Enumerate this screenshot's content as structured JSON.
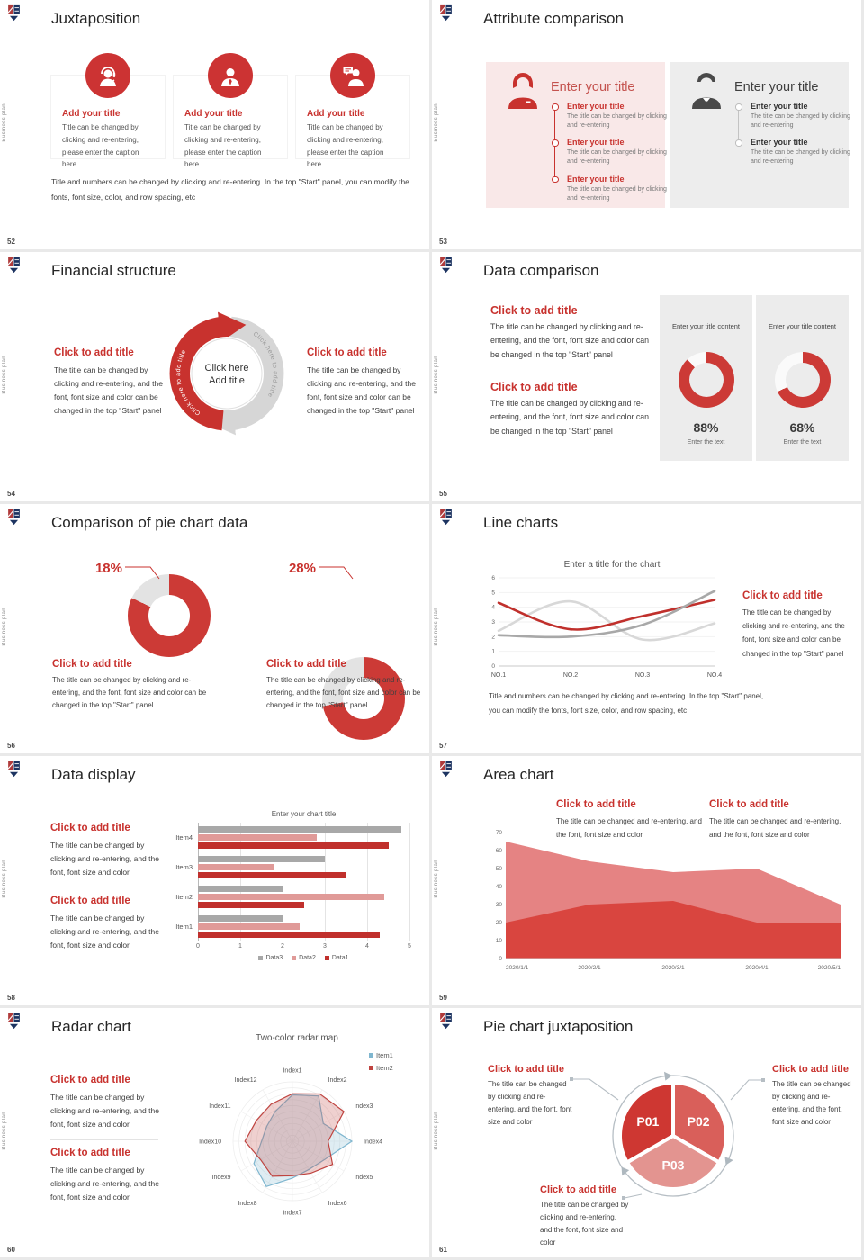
{
  "page": {
    "background": "#e2e2e2",
    "slide_background": "#ffffff"
  },
  "brand": {
    "vertical_text": "Business plan",
    "logo": "school-crest-logo-icon"
  },
  "colors": {
    "accent": "#c8322e",
    "accent_soft": "#c4524e",
    "chart_red": "#c0302c",
    "chart_pink": "#e09a98",
    "chart_gray": "#a8a8a8",
    "chart_light_gray": "#d8d8d8",
    "panel_pink": "#f9e8e8",
    "panel_gray": "#ededed",
    "area_light": "#e58383",
    "area_dark": "#d9453f",
    "radar_blue": "#7fb6cf",
    "radar_red": "#bf4440",
    "pie_colors": [
      "#ce3732",
      "#d95f5a",
      "#e39490"
    ]
  },
  "slides": {
    "s52": {
      "number": "52",
      "title": "Juxtaposition",
      "cards": [
        {
          "icon": "support-agent-icon",
          "title": "Add your title",
          "caption": "Title can be changed by clicking and re-entering, please enter the caption here"
        },
        {
          "icon": "businessman-icon",
          "title": "Add your title",
          "caption": "Title can be changed by clicking and re-entering, please enter the caption here"
        },
        {
          "icon": "consultant-chat-icon",
          "title": "Add your title",
          "caption": "Title can be changed by clicking and re-entering, please enter the caption here"
        }
      ],
      "note": "Title and numbers can be changed by clicking and re-entering. In the top \"Start\" panel, you can modify the fonts, font size, color, and row spacing, etc"
    },
    "s53": {
      "number": "53",
      "title": "Attribute comparison",
      "panels": [
        {
          "icon": "female-person-icon",
          "heading": "Enter your title",
          "items": [
            {
              "title": "Enter your title",
              "body": "The title can be changed by clicking and re-entering"
            },
            {
              "title": "Enter your title",
              "body": "The title can be changed by clicking and re-entering"
            },
            {
              "title": "Enter your title",
              "body": "The title can be changed by clicking and re-entering"
            }
          ]
        },
        {
          "icon": "male-person-icon",
          "heading": "Enter your title",
          "items": [
            {
              "title": "Enter your title",
              "body": "The title can be changed by clicking and re-entering"
            },
            {
              "title": "Enter your title",
              "body": "The title can be changed by clicking and re-entering"
            }
          ]
        }
      ]
    },
    "s54": {
      "number": "54",
      "title": "Financial structure",
      "left": {
        "heading": "Click to add title",
        "body": "The title can be changed by clicking and re-entering, and the font, font size and color can be changed in the top \"Start\" panel"
      },
      "right": {
        "heading": "Click to add title",
        "body": "The title can be changed by clicking and re-entering, and the font, font size and color can be changed in the top \"Start\" panel"
      },
      "center": {
        "line1": "Click here",
        "line2": "Add title",
        "arc_label": "Click here to add title"
      }
    },
    "s55": {
      "number": "55",
      "title": "Data comparison",
      "blocks": [
        {
          "heading": "Click to add title",
          "body": "The title can be changed by clicking and re-entering, and the font, font size and color can be changed in the top \"Start\" panel"
        },
        {
          "heading": "Click to add title",
          "body": "The title can be changed by clicking and re-entering, and the font, font size and color can be changed in the top \"Start\" panel"
        }
      ],
      "cards": [
        {
          "title": "Enter your title content",
          "value_label": "88%",
          "caption": "Enter the text",
          "donut": {
            "red_pct": 88,
            "color": "#cc3a36",
            "track": "#fafafa",
            "hole": "#ececec",
            "ring": 12
          },
          "chart_data": {
            "type": "pie",
            "labels": [
              "filled",
              "remainder"
            ],
            "values": [
              88,
              12
            ]
          }
        },
        {
          "title": "Enter your title content",
          "value_label": "68%",
          "caption": "Enter the text",
          "donut": {
            "red_pct": 68,
            "color": "#cc3a36",
            "track": "#fafafa",
            "hole": "#ececec",
            "ring": 12
          },
          "chart_data": {
            "type": "pie",
            "labels": [
              "filled",
              "remainder"
            ],
            "values": [
              68,
              32
            ]
          }
        }
      ]
    },
    "s56": {
      "number": "56",
      "title": "Comparison of pie chart data",
      "donuts": [
        {
          "value_label": "18%",
          "heading": "Click to add title",
          "body": "The title can be changed by clicking and re-entering, and the font, font size and color can be changed in the top \"Start\" panel",
          "donut": {
            "red_pct": 82,
            "color": "#cc3a36",
            "track": "#e3e3e3",
            "hole": "#ffffff",
            "ring": 23
          },
          "chart_data": {
            "type": "pie",
            "labels": [
              "highlight",
              "rest"
            ],
            "values": [
              18,
              82
            ]
          }
        },
        {
          "value_label": "28%",
          "heading": "Click to add title",
          "body": "The title can be changed by clicking and re-entering, and the font, font size and color can be changed in the top \"Start\" panel",
          "donut": {
            "red_pct": 72,
            "color": "#cc3a36",
            "track": "#e3e3e3",
            "hole": "#ffffff",
            "ring": 23
          },
          "chart_data": {
            "type": "pie",
            "labels": [
              "highlight",
              "rest"
            ],
            "values": [
              28,
              72
            ]
          }
        }
      ]
    },
    "s57": {
      "number": "57",
      "title": "Line charts",
      "block": {
        "heading": "Click to add title",
        "body": "The title can be changed by clicking and re-entering, and the font, font size and color can be changed in the top \"Start\" panel"
      },
      "note": "Title and numbers can be changed by clicking and re-entering. In the top \"Start\" panel, you can modify the fonts, font size, color, and row spacing, etc",
      "chart_data": {
        "type": "line",
        "title": "Enter a title for the chart",
        "x": [
          "NO.1",
          "NO.2",
          "NO.3",
          "NO.4"
        ],
        "ylim": [
          0,
          6
        ],
        "yticks": [
          0,
          1,
          2,
          3,
          4,
          5,
          6
        ],
        "grid": true,
        "legend": false,
        "series": [
          {
            "name": "series-light-gray",
            "color": "#d8d8d8",
            "values": [
              2.4,
              4.4,
              1.8,
              2.9
            ]
          },
          {
            "name": "series-red",
            "color": "#c0302c",
            "values": [
              4.3,
              2.5,
              3.4,
              4.5
            ]
          },
          {
            "name": "series-dark-gray",
            "color": "#a8a8a8",
            "values": [
              2.1,
              2.0,
              2.8,
              5.1
            ]
          }
        ]
      }
    },
    "s58": {
      "number": "58",
      "title": "Data display",
      "blocks": [
        {
          "heading": "Click to add title",
          "body": "The title can be changed by clicking and re-entering, and the font, font size and color"
        },
        {
          "heading": "Click to add title",
          "body": "The title can be changed by clicking and re-entering, and the font, font size and color"
        }
      ],
      "chart_data": {
        "type": "bar",
        "orientation": "horizontal",
        "title": "Enter your chart title",
        "categories": [
          "Item1",
          "Item2",
          "Item3",
          "Item4"
        ],
        "xlim": [
          0,
          5
        ],
        "xticks": [
          0,
          1,
          2,
          3,
          4,
          5
        ],
        "legend_position": "bottom",
        "series": [
          {
            "name": "Data3",
            "color": "#a8a8a8",
            "values": [
              2.0,
              2.0,
              3.0,
              4.8
            ]
          },
          {
            "name": "Data2",
            "color": "#e09a98",
            "values": [
              2.4,
              4.4,
              1.8,
              2.8
            ]
          },
          {
            "name": "Data1",
            "color": "#c0302c",
            "values": [
              4.3,
              2.5,
              3.5,
              4.5
            ]
          }
        ]
      }
    },
    "s59": {
      "number": "59",
      "title": "Area chart",
      "blocks": [
        {
          "heading": "Click to add title",
          "body": "The title can be changed and re-entering, and the font, font size and color"
        },
        {
          "heading": "Click to add title",
          "body": "The title can be changed and re-entering, and the font, font size and color"
        }
      ],
      "chart_data": {
        "type": "area",
        "x": [
          "2020/1/1",
          "2020/2/1",
          "2020/3/1",
          "2020/4/1",
          "2020/5/1"
        ],
        "ylim": [
          0,
          70
        ],
        "yticks": [
          0,
          10,
          20,
          30,
          40,
          50,
          60,
          70
        ],
        "series": [
          {
            "name": "back-light-red",
            "color": "#e58383",
            "values": [
              65,
              54,
              48,
              50,
              30
            ]
          },
          {
            "name": "front-dark-red",
            "color": "#d9453f",
            "values": [
              20,
              30,
              32,
              20,
              20
            ]
          }
        ]
      }
    },
    "s60": {
      "number": "60",
      "title": "Radar chart",
      "blocks": [
        {
          "heading": "Click to add title",
          "body": "The title can be changed by clicking and re-entering, and the font, font size and color"
        },
        {
          "heading": "Click to add title",
          "body": "The title can be changed by clicking and re-entering, and the font, font size and color"
        }
      ],
      "chart_data": {
        "type": "radar",
        "title": "Two-color radar map",
        "rmax": 100,
        "axes": [
          "Index1",
          "Index2",
          "Index3",
          "Index4",
          "Index5",
          "Index6",
          "Index7",
          "Index8",
          "Index9",
          "Index10",
          "Index11",
          "Index12"
        ],
        "series": [
          {
            "name": "Item1",
            "color": "#7fb6cf",
            "values": [
              78,
              88,
              60,
              100,
              62,
              55,
              62,
              88,
              75,
              52,
              50,
              58
            ]
          },
          {
            "name": "Item2",
            "color": "#bf4440",
            "values": [
              80,
              92,
              100,
              60,
              78,
              62,
              58,
              68,
              62,
              80,
              70,
              72
            ]
          }
        ]
      }
    },
    "s61": {
      "number": "61",
      "title": "Pie chart juxtaposition",
      "blocks": [
        {
          "heading": "Click to add title",
          "body": "The title can be changed by clicking and re-entering, and the font, font size and color"
        },
        {
          "heading": "Click to add title",
          "body": "The title can be changed by clicking and re-entering, and the font, font size and color"
        },
        {
          "heading": "Click to add title",
          "body": "The title can be changed by clicking and re-entering, and the font, font size and color"
        }
      ],
      "chart_data": {
        "type": "pie",
        "labels": [
          "P01",
          "P02",
          "P03"
        ],
        "values": [
          33.3,
          33.3,
          33.3
        ],
        "colors": [
          "#ce3732",
          "#d95f5a",
          "#e39490"
        ]
      }
    }
  }
}
